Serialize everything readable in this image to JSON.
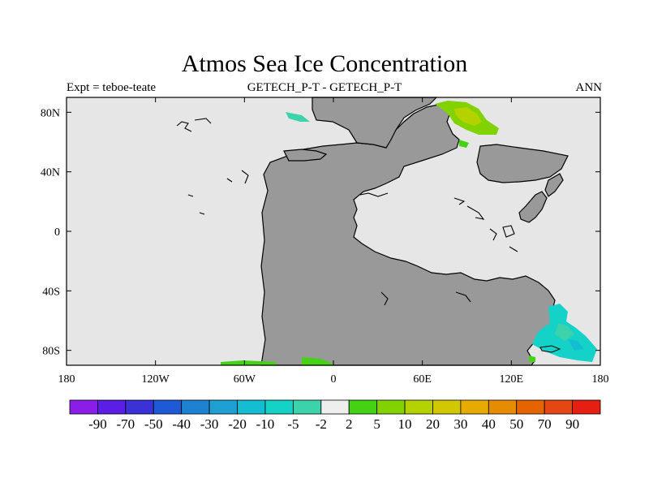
{
  "title": "Atmos Sea Ice Concentration",
  "subtitle_left": "Expt = teboe-teate",
  "subtitle_center": "GETECH_P-T - GETECH_P-T",
  "subtitle_right": "ANN",
  "map": {
    "lon_range": [
      -180,
      180
    ],
    "lat_range": [
      -90,
      90
    ],
    "ocean_color": "#e6e6e6",
    "land_color": "#999999",
    "coastline_color": "#000000",
    "x_ticks": [
      {
        "value": -180,
        "label": "180"
      },
      {
        "value": -120,
        "label": "120W"
      },
      {
        "value": -60,
        "label": "60W"
      },
      {
        "value": 0,
        "label": "0"
      },
      {
        "value": 60,
        "label": "60E"
      },
      {
        "value": 120,
        "label": "120E"
      },
      {
        "value": 180,
        "label": "180"
      }
    ],
    "y_ticks": [
      {
        "value": 80,
        "label": "80N"
      },
      {
        "value": 40,
        "label": "40N"
      },
      {
        "value": 0,
        "label": "0"
      },
      {
        "value": -40,
        "label": "40S"
      },
      {
        "value": -80,
        "label": "80S"
      }
    ]
  },
  "colorbar": {
    "labels": [
      "-90",
      "-70",
      "-50",
      "-40",
      "-30",
      "-20",
      "-10",
      "-5",
      "-2",
      "2",
      "5",
      "10",
      "20",
      "30",
      "40",
      "50",
      "70",
      "90"
    ],
    "colors": [
      "#8a1ee6",
      "#5a1ee6",
      "#3a32d6",
      "#1e5ad6",
      "#1e82d2",
      "#1ea0d2",
      "#14bed2",
      "#14d2c8",
      "#3cd2aa",
      "#eeeeee",
      "#46d214",
      "#82d200",
      "#b4d200",
      "#d2c800",
      "#e6aa00",
      "#e68c00",
      "#e66400",
      "#e64614",
      "#e61e14"
    ]
  }
}
